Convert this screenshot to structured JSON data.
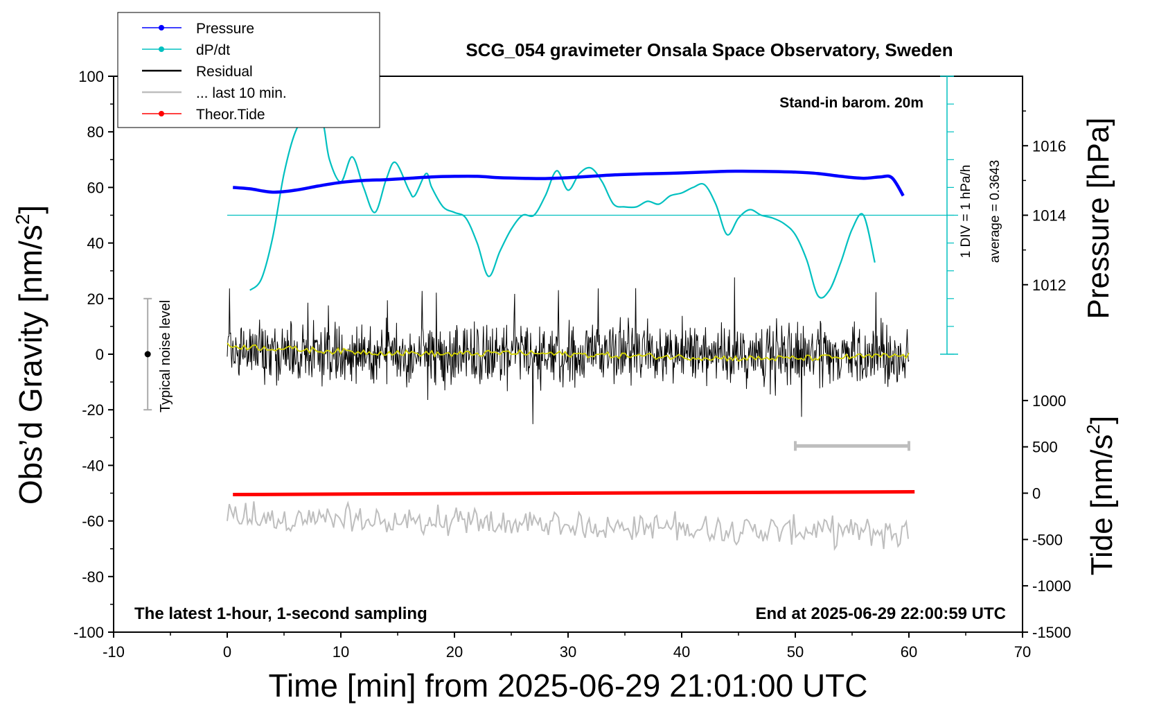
{
  "chart_data": {
    "type": "line",
    "title": "SCG_054 gravimeter Onsala Space Observatory, Sweden",
    "xlabel": "Time [min] from 2025-06-29 21:01:00 UTC",
    "ylabel_main": "Obs’d Gravity [nm/s",
    "ylabel_main_sup": "2",
    "ylabel_main_end": "]",
    "ylabel_pressure": "Pressure [hPa]",
    "ylabel_tide": "Tide [nm/s",
    "ylabel_tide_sup": "2",
    "ylabel_tide_end": "]",
    "xlim": [
      -10,
      70
    ],
    "ylim": [
      -100,
      100
    ],
    "xticks": [
      -10,
      0,
      10,
      20,
      30,
      40,
      50,
      60,
      70
    ],
    "yticks": [
      -100,
      -80,
      -60,
      -40,
      -20,
      0,
      20,
      40,
      60,
      80,
      100
    ],
    "pressure_ticks": [
      1012,
      1014,
      1016
    ],
    "tide_ticks": [
      1000,
      500,
      0,
      -500,
      -1000,
      -1500
    ],
    "annotations": {
      "barometer": "Stand-in barom. 20m",
      "dpdt_scale": "1 DIV = 1 hPa/h",
      "dpdt_average": "average = 0.3643",
      "noise_label": "Typical noise level",
      "bottom_left": "The latest 1-hour, 1-second sampling",
      "bottom_right": "End at 2025-06-29 22:00:59 UTC"
    },
    "noise_bar": {
      "x": -7,
      "center": 0,
      "range": [
        -20,
        20
      ]
    },
    "last10_marker": {
      "x": [
        50,
        60
      ],
      "y": -33
    },
    "legend": [
      {
        "label": "Pressure",
        "color": "#0000ff",
        "marker": true
      },
      {
        "label": "dP/dt",
        "color": "#00c0c0",
        "marker": true
      },
      {
        "label": "Residual",
        "color": "#000000",
        "marker": false
      },
      {
        "label": "... last 10 min.",
        "color": "#bebebe",
        "marker": false
      },
      {
        "label": "Theor.Tide",
        "color": "#ff0000",
        "marker": true
      }
    ],
    "series": [
      {
        "name": "Pressure",
        "color": "#0000ff",
        "x": [
          0.5,
          2,
          4,
          6,
          8,
          10,
          12,
          14,
          16,
          18,
          20,
          22,
          24,
          26,
          28,
          30,
          32,
          34,
          36,
          38,
          40,
          42,
          44,
          46,
          48,
          50,
          52,
          54,
          56,
          57.5,
          58.5,
          59.5
        ],
        "y": [
          60,
          59.5,
          58.3,
          59,
          60.5,
          61.8,
          62.5,
          62.8,
          63.3,
          63.8,
          64,
          64,
          63.5,
          63.3,
          63.2,
          63.5,
          64,
          64.5,
          64.8,
          65,
          65.2,
          65.5,
          65.8,
          65.8,
          65.7,
          65.5,
          65,
          64,
          63.3,
          63.8,
          63.5,
          57
        ]
      },
      {
        "name": "dP/dt",
        "color": "#00c0c0",
        "x": [
          2,
          3,
          4,
          5,
          6,
          7,
          8,
          8.5,
          9,
          10,
          11,
          12,
          13,
          14,
          14.8,
          16,
          16.5,
          17.5,
          18,
          19,
          20,
          21,
          22,
          23,
          24,
          25,
          26,
          27,
          28,
          29,
          30,
          31,
          32,
          33,
          34,
          35,
          36,
          37,
          38,
          39,
          40,
          41,
          42,
          43,
          44,
          45,
          46,
          47,
          48,
          49,
          50,
          51,
          52,
          53,
          54,
          55,
          56,
          57
        ],
        "y": [
          23,
          27,
          42,
          65,
          80,
          86,
          87,
          82,
          70,
          62,
          71,
          60,
          51,
          63,
          69,
          59,
          57,
          65,
          60,
          53,
          51,
          49,
          40,
          28,
          37,
          45,
          50,
          50,
          57,
          66,
          59,
          65,
          67,
          62,
          54,
          53,
          53,
          55,
          54,
          57,
          58,
          60,
          61,
          54,
          43,
          49,
          52,
          50,
          49,
          47,
          43,
          34,
          21,
          23,
          33,
          45,
          50,
          33
        ]
      },
      {
        "name": "Residual",
        "color": "#000000",
        "x_range": [
          0,
          60
        ],
        "amplitude_range": [
          -25,
          31
        ],
        "typical_envelope": 14
      },
      {
        "name": "Residual smoothed",
        "color": "#d4d400",
        "x": [
          0,
          5,
          10,
          15,
          20,
          25,
          30,
          35,
          40,
          45,
          50,
          55,
          60
        ],
        "y": [
          3,
          2,
          1,
          0.5,
          0,
          0.5,
          0,
          -0.5,
          -1,
          -1.5,
          -1.5,
          -1,
          -0.5
        ]
      },
      {
        "name": "... last 10 min.",
        "color": "#bebebe",
        "x_range": [
          0,
          60
        ],
        "center": -63,
        "amplitude_range": [
          -85,
          -35
        ]
      },
      {
        "name": "Theor.Tide",
        "color": "#ff0000",
        "x": [
          0.5,
          60.5
        ],
        "y": [
          -50.5,
          -49.5
        ]
      }
    ]
  }
}
